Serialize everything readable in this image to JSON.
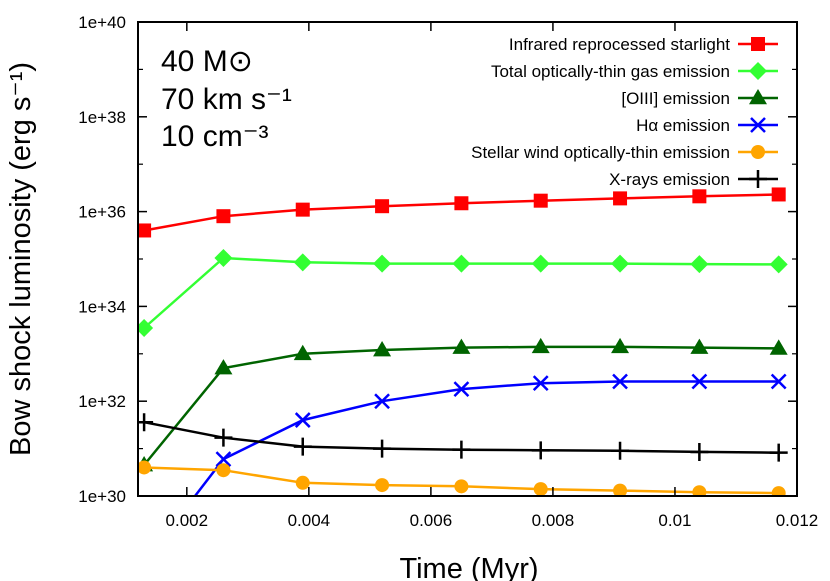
{
  "chart_data": {
    "type": "line",
    "xlabel": "Time (Myr)",
    "ylabel": "Bow shock luminosity (erg s⁻¹)",
    "xlim": [
      0.0012,
      0.012
    ],
    "ylim": [
      1e+30,
      1e+40
    ],
    "yscale": "log",
    "x_ticks": [
      {
        "value": 0.002,
        "label": "0.002"
      },
      {
        "value": 0.004,
        "label": "0.004"
      },
      {
        "value": 0.006,
        "label": "0.006"
      },
      {
        "value": 0.008,
        "label": "0.008"
      },
      {
        "value": 0.01,
        "label": "0.01"
      },
      {
        "value": 0.012,
        "label": "0.012"
      }
    ],
    "y_ticks": [
      {
        "value": 1e+30,
        "label": "1e+30"
      },
      {
        "value": 1e+32,
        "label": "1e+32"
      },
      {
        "value": 1e+34,
        "label": "1e+34"
      },
      {
        "value": 1e+36,
        "label": "1e+36"
      },
      {
        "value": 1e+38,
        "label": "1e+38"
      },
      {
        "value": 1e+40,
        "label": "1e+40"
      }
    ],
    "annotation": [
      "40 M⊙",
      "70 km s⁻¹",
      "10 cm⁻³"
    ],
    "legend_position": "top-right",
    "grid": false,
    "series": [
      {
        "name": "Infrared reprocessed starlight",
        "color": "#ff0000",
        "marker": "square",
        "x": [
          0.0013,
          0.0026,
          0.0039,
          0.0052,
          0.0065,
          0.0078,
          0.0091,
          0.0104,
          0.0117
        ],
        "y": [
          4e+35,
          8e+35,
          1.1e+36,
          1.3e+36,
          1.5e+36,
          1.7e+36,
          1.9e+36,
          2.1e+36,
          2.3e+36
        ]
      },
      {
        "name": "Total optically-thin gas emission",
        "color": "#33ff33",
        "marker": "diamond",
        "x": [
          0.0013,
          0.0026,
          0.0039,
          0.0052,
          0.0065,
          0.0078,
          0.0091,
          0.0104,
          0.0117
        ],
        "y": [
          3.5e+33,
          1.05e+35,
          8.5e+34,
          8e+34,
          8e+34,
          8e+34,
          8e+34,
          7.8e+34,
          7.7e+34
        ]
      },
      {
        "name": "[OIII] emission",
        "color": "#006400",
        "marker": "triangle",
        "x": [
          0.0013,
          0.0026,
          0.0039,
          0.0052,
          0.0065,
          0.0078,
          0.0091,
          0.0104,
          0.0117
        ],
        "y": [
          4.5e+30,
          5e+32,
          1e+33,
          1.2e+33,
          1.35e+33,
          1.4e+33,
          1.4e+33,
          1.35e+33,
          1.3e+33
        ]
      },
      {
        "name": "Hα emission",
        "color": "#0000ff",
        "marker": "x",
        "x": [
          0.0013,
          0.0026,
          0.0039,
          0.0052,
          0.0065,
          0.0078,
          0.0091,
          0.0104,
          0.0117
        ],
        "y": [
          4e+28,
          6e+30,
          4e+31,
          1e+32,
          1.8e+32,
          2.4e+32,
          2.6e+32,
          2.6e+32,
          2.6e+32
        ]
      },
      {
        "name": "Stellar wind optically-thin emission",
        "color": "#ffa500",
        "marker": "circle",
        "x": [
          0.0013,
          0.0026,
          0.0039,
          0.0052,
          0.0065,
          0.0078,
          0.0091,
          0.0104,
          0.0117
        ],
        "y": [
          4e+30,
          3.5e+30,
          1.9e+30,
          1.7e+30,
          1.6e+30,
          1.4e+30,
          1.3e+30,
          1.2e+30,
          1.15e+30
        ]
      },
      {
        "name": "X-rays emission",
        "color": "#000000",
        "marker": "plus",
        "x": [
          0.0013,
          0.0026,
          0.0039,
          0.0052,
          0.0065,
          0.0078,
          0.0091,
          0.0104,
          0.0117
        ],
        "y": [
          3.6e+31,
          1.7e+31,
          1.1e+31,
          1e+31,
          9.5e+30,
          9.2e+30,
          9e+30,
          8.5e+30,
          8.2e+30
        ]
      }
    ]
  }
}
